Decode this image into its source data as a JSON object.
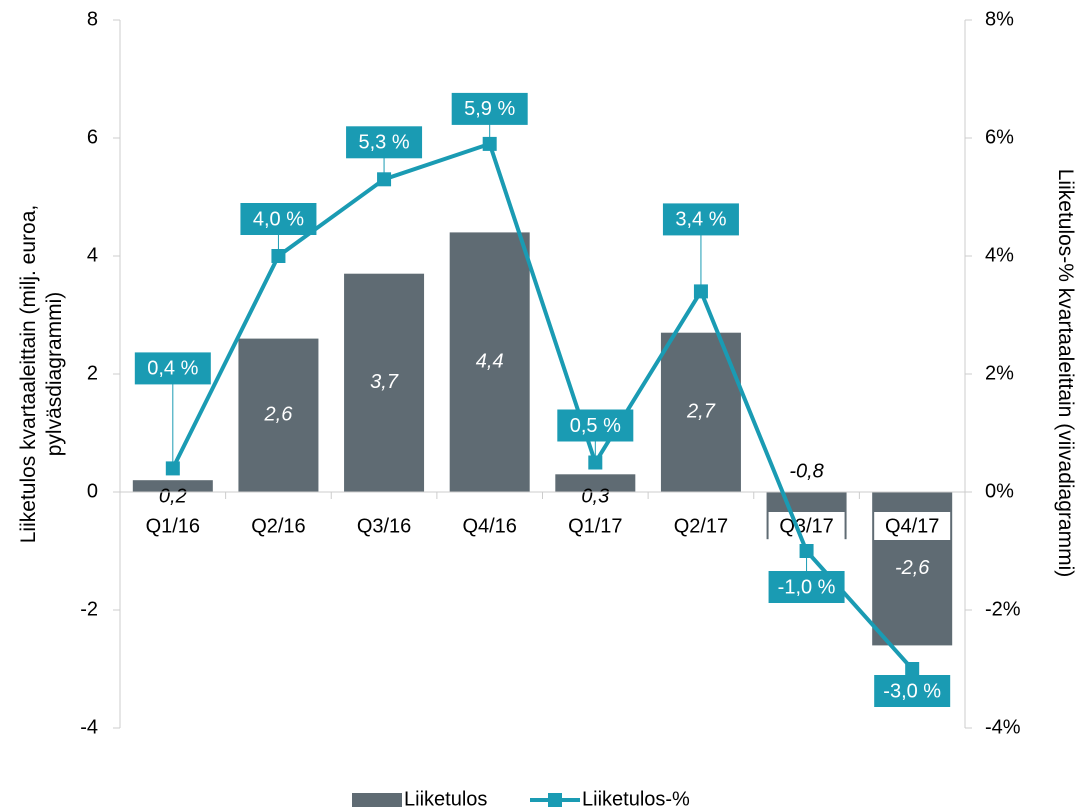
{
  "chart_data": {
    "type": "bar-line",
    "ylabel": "Liiketulos kvartaaleittain (milj. euroa, pylväsdiagrammi)",
    "y2label": "Liiketulos-% kvartaaleittain (viivadiagrammi)",
    "categories": [
      "Q1/16",
      "Q2/16",
      "Q3/16",
      "Q4/16",
      "Q1/17",
      "Q2/17",
      "Q3/17",
      "Q4/17"
    ],
    "series": [
      {
        "name": "Liiketulos",
        "type": "bar",
        "color": "#5f6b73",
        "values": [
          0.2,
          2.6,
          3.7,
          4.4,
          0.3,
          2.7,
          -0.8,
          -2.6
        ],
        "value_labels": [
          "0,2",
          "2,6",
          "3,7",
          "4,4",
          "0,3",
          "2,7",
          "-0,8",
          "-2,6"
        ]
      },
      {
        "name": "Liiketulos-%",
        "type": "line",
        "axis": "y2",
        "color": "#1a9bb3",
        "values": [
          0.4,
          4.0,
          5.3,
          5.9,
          0.5,
          3.4,
          -1.0,
          -3.0
        ],
        "value_labels": [
          "0,4 %",
          "4,0 %",
          "5,3 %",
          "5,9 %",
          "0,5 %",
          "3,4 %",
          "-1,0 %",
          "-3,0 %"
        ]
      }
    ],
    "ylim": [
      -4,
      8
    ],
    "yticks": [
      -4,
      -2,
      0,
      2,
      4,
      6,
      8
    ],
    "y2lim": [
      -4,
      8
    ],
    "y2ticks": [
      {
        "value": -4,
        "label": "-4%"
      },
      {
        "value": -2,
        "label": "-2%"
      },
      {
        "value": 0,
        "label": "0%"
      },
      {
        "value": 2,
        "label": "2%"
      },
      {
        "value": 4,
        "label": "4%"
      },
      {
        "value": 6,
        "label": "6%"
      },
      {
        "value": 8,
        "label": "8%"
      }
    ],
    "legend": "bottom"
  }
}
